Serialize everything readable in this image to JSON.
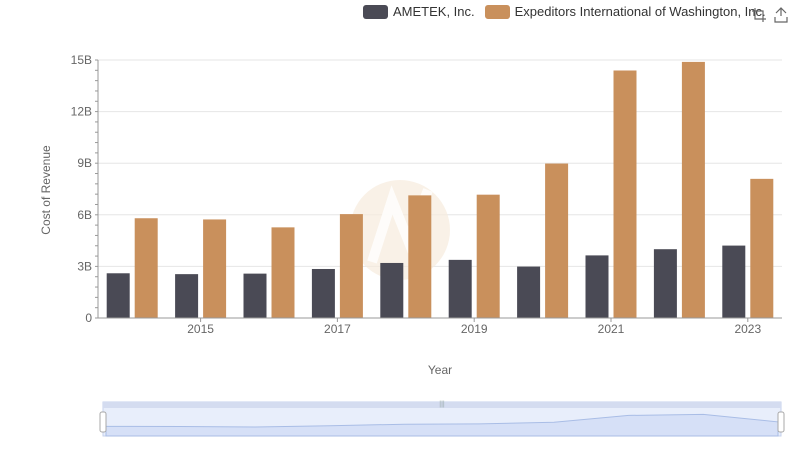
{
  "legend": {
    "items": [
      {
        "label": "AMETEK, Inc.",
        "color": "#4a4a55"
      },
      {
        "label": "Expeditors International of Washington, Inc.",
        "color": "#c9905c"
      }
    ]
  },
  "toolbox": {
    "zoom_icon": "zoom-icon",
    "restore_icon": "restore-icon"
  },
  "chart_data": {
    "type": "bar",
    "title": "",
    "xlabel": "Year",
    "ylabel": "Cost of Revenue",
    "ylim": [
      0,
      15000000000
    ],
    "y_ticks": [
      "0",
      "3B",
      "6B",
      "9B",
      "12B",
      "15B"
    ],
    "categories": [
      "2014",
      "2015",
      "2016",
      "2017",
      "2018",
      "2019",
      "2020",
      "2021",
      "2022",
      "2023"
    ],
    "x_tick_labels": [
      "2015",
      "2017",
      "2019",
      "2021",
      "2023"
    ],
    "series": [
      {
        "name": "AMETEK, Inc.",
        "color": "#4a4a55",
        "values": [
          2600000000,
          2550000000,
          2580000000,
          2850000000,
          3200000000,
          3380000000,
          2990000000,
          3640000000,
          4000000000,
          4210000000
        ]
      },
      {
        "name": "Expeditors International of Washington, Inc.",
        "color": "#c9905c",
        "values": [
          5800000000,
          5730000000,
          5270000000,
          6040000000,
          7130000000,
          7170000000,
          8980000000,
          14390000000,
          14890000000,
          8090000000
        ]
      }
    ],
    "grid": true,
    "legend_position": "top-right"
  },
  "datazoom": {
    "range": [
      0,
      100
    ]
  }
}
